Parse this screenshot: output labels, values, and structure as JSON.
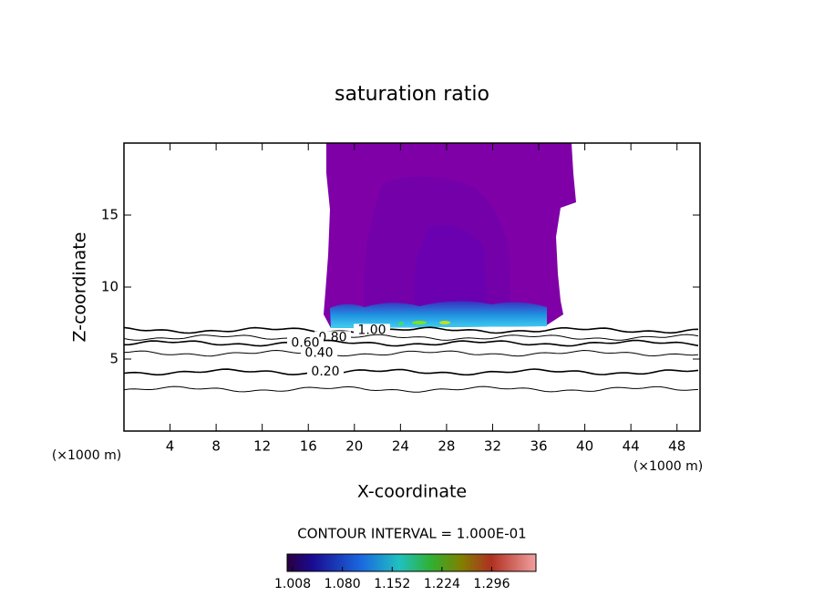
{
  "chart_data": {
    "type": "contour",
    "title": "saturation ratio",
    "x_label": "X-coordinate",
    "y_label": "Z-coordinate",
    "x_unit": "(×1000 m)",
    "y_unit": "(×1000 m)",
    "xlim": [
      0,
      50
    ],
    "ylim": [
      0,
      20
    ],
    "xticks": [
      4,
      8,
      12,
      16,
      20,
      24,
      28,
      32,
      36,
      40,
      44,
      48
    ],
    "yticks": [
      5,
      10,
      15
    ],
    "contours": [
      {
        "level": {
          "value": 1.0,
          "label": "1.00"
        },
        "z": 7.0
      },
      {
        "level": {
          "value": 0.8,
          "label": "0.80"
        },
        "z": 6.5
      },
      {
        "level": {
          "value": 0.6,
          "label": "0.60"
        },
        "z": 6.1
      },
      {
        "level": {
          "value": 0.4,
          "label": "0.40"
        },
        "z": 5.4
      },
      {
        "level": {
          "value": 0.2,
          "label": "0.20"
        },
        "z": 4.1
      },
      {
        "level": null,
        "z": 2.9
      }
    ],
    "contour_interval": "CONTOUR INTERVAL = 1.000E-01",
    "colorbar": {
      "clim": [
        1.0,
        1.36
      ],
      "ticks": [
        1.008,
        {
          "value": 1.08,
          "label": "1.080"
        },
        1.152,
        1.224,
        1.296
      ]
    }
  }
}
